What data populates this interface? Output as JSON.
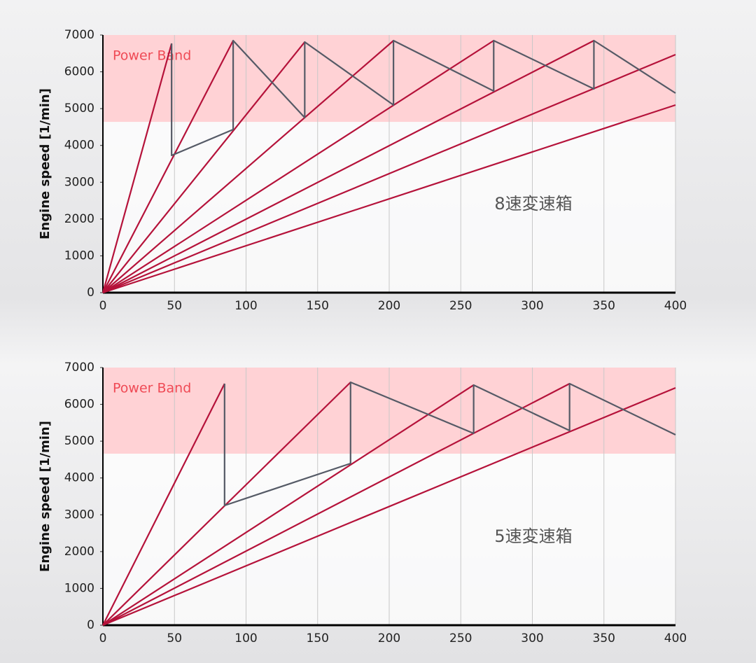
{
  "chart_data": [
    {
      "type": "line",
      "ylabel": "Engine speed [1/min]",
      "xlim": [
        0,
        400
      ],
      "ylim": [
        0,
        7000
      ],
      "xticks": [
        0,
        50,
        100,
        150,
        200,
        250,
        300,
        350,
        400
      ],
      "yticks": [
        0,
        1000,
        2000,
        3000,
        4000,
        5000,
        6000,
        7000
      ],
      "grid": "x",
      "band": {
        "label": "Power Band",
        "range": [
          4640,
          7000
        ],
        "color": "#ffd2d5"
      },
      "annotation": "8速変速箱",
      "series": [
        {
          "color": "#b5123a",
          "x": [
            0,
            48
          ],
          "values": [
            0,
            6770
          ]
        },
        {
          "color": "#b5123a",
          "x": [
            0,
            91
          ],
          "values": [
            0,
            6848
          ]
        },
        {
          "color": "#b5123a",
          "x": [
            0,
            141
          ],
          "values": [
            0,
            6810
          ]
        },
        {
          "color": "#b5123a",
          "x": [
            0,
            203
          ],
          "values": [
            0,
            6848
          ]
        },
        {
          "color": "#b5123a",
          "x": [
            0,
            273
          ],
          "values": [
            0,
            6848
          ]
        },
        {
          "color": "#b5123a",
          "x": [
            0,
            343
          ],
          "values": [
            0,
            6848
          ]
        },
        {
          "color": "#b5123a",
          "x": [
            0,
            400
          ],
          "values": [
            0,
            6468
          ]
        },
        {
          "color": "#b5123a",
          "x": [
            0,
            400
          ],
          "values": [
            0,
            5098
          ]
        },
        {
          "color": "#555a66",
          "x": [
            48,
            48,
            91,
            91,
            141,
            141,
            203,
            203,
            273,
            273,
            343,
            343,
            400
          ],
          "values": [
            6770,
            3728,
            4432,
            6848,
            4756,
            6810,
            5098,
            6848,
            5478,
            6848,
            5535,
            6848,
            5421
          ]
        }
      ]
    },
    {
      "type": "line",
      "ylabel": "Engine speed [1/min]",
      "xlim": [
        0,
        400
      ],
      "ylim": [
        0,
        7000
      ],
      "xticks": [
        0,
        50,
        100,
        150,
        200,
        250,
        300,
        350,
        400
      ],
      "yticks": [
        0,
        1000,
        2000,
        3000,
        4000,
        5000,
        6000,
        7000
      ],
      "grid": "x",
      "band": {
        "label": "Power Band",
        "range": [
          4660,
          7000
        ],
        "color": "#ffd2d5"
      },
      "annotation": "5速変速箱",
      "series": [
        {
          "color": "#b5123a",
          "x": [
            0,
            85
          ],
          "values": [
            0,
            6563
          ]
        },
        {
          "color": "#b5123a",
          "x": [
            0,
            173
          ],
          "values": [
            0,
            6601
          ]
        },
        {
          "color": "#b5123a",
          "x": [
            0,
            259
          ],
          "values": [
            0,
            6525
          ]
        },
        {
          "color": "#b5123a",
          "x": [
            0,
            326
          ],
          "values": [
            0,
            6563
          ]
        },
        {
          "color": "#b5123a",
          "x": [
            0,
            400
          ],
          "values": [
            0,
            6449
          ]
        },
        {
          "color": "#555a66",
          "x": [
            85,
            85,
            173,
            173,
            259,
            259,
            326,
            326,
            400
          ],
          "values": [
            6563,
            3253,
            4394,
            6601,
            5212,
            6525,
            5288,
            6563,
            5174
          ]
        }
      ]
    }
  ]
}
